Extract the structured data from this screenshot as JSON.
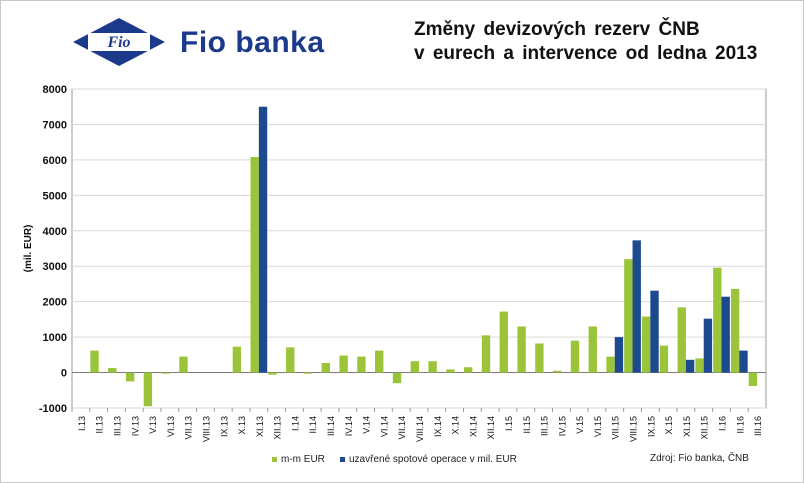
{
  "header": {
    "brand": "Fio banka",
    "logo_text": "Fio",
    "title_line1": "Změny devizových rezerv ČNB",
    "title_line2": "v eurech a intervence od ledna 2013"
  },
  "colors": {
    "series1": "#9bc43b",
    "series2": "#1d4a8f",
    "plot_bg": "#ffffff",
    "grid": "#d9d9d9",
    "brand": "#1b3a8c"
  },
  "source_note": "Zdroj: Fio banka, ČNB",
  "chart_data": {
    "type": "bar",
    "title": "Změny devizových rezerv ČNB v eurech a intervence od ledna 2013",
    "ylabel": "(mil. EUR)",
    "ylim": [
      -1000,
      8000
    ],
    "yticks": [
      -1000,
      0,
      1000,
      2000,
      3000,
      4000,
      5000,
      6000,
      7000,
      8000
    ],
    "grid": true,
    "legend_position": "bottom",
    "categories": [
      "I.13",
      "II.13",
      "III.13",
      "IV.13",
      "V.13",
      "VI.13",
      "VII.13",
      "VIII.13",
      "IX.13",
      "X.13",
      "XI.13",
      "XII.13",
      "I.14",
      "II.14",
      "III.14",
      "IV.14",
      "V.14",
      "VI.14",
      "VII.14",
      "VIII.14",
      "IX.14",
      "X.14",
      "XI.14",
      "XII.14",
      "I.15",
      "II.15",
      "III.15",
      "IV.15",
      "V.15",
      "VI.15",
      "VII.15",
      "VIII.15",
      "IX.15",
      "X.15",
      "XI.15",
      "XII.15",
      "I.16",
      "II.16",
      "III.16"
    ],
    "series": [
      {
        "name": "m-m EUR",
        "values": [
          0,
          620,
          130,
          -250,
          -950,
          -30,
          450,
          0,
          0,
          730,
          6080,
          -60,
          710,
          -30,
          270,
          480,
          450,
          620,
          -300,
          320,
          320,
          90,
          150,
          1050,
          1720,
          1300,
          820,
          50,
          900,
          1300,
          450,
          3200,
          1580,
          760,
          1840,
          400,
          2960,
          2360,
          -380
        ]
      },
      {
        "name": "uzavřené spotové operace v mil. EUR",
        "values": [
          0,
          0,
          0,
          0,
          0,
          0,
          0,
          0,
          0,
          0,
          7500,
          0,
          0,
          0,
          0,
          0,
          0,
          0,
          0,
          0,
          0,
          0,
          0,
          0,
          0,
          0,
          0,
          0,
          0,
          0,
          1000,
          3730,
          2310,
          0,
          360,
          1520,
          2140,
          620,
          0
        ]
      }
    ]
  }
}
